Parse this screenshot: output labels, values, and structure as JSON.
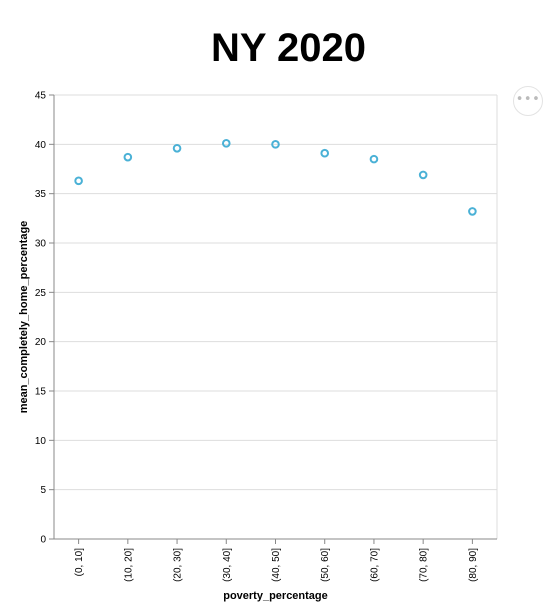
{
  "chart_data": {
    "type": "scatter",
    "title": "NY 2020",
    "xlabel": "poverty_percentage",
    "ylabel": "mean_completely_home_percentage",
    "categories": [
      "(0, 10]",
      "(10, 20]",
      "(20, 30]",
      "(30, 40]",
      "(40, 50]",
      "(50, 60]",
      "(60, 70]",
      "(70, 80]",
      "(80, 90]"
    ],
    "values": [
      36.3,
      38.7,
      39.6,
      40.1,
      40.0,
      39.1,
      38.5,
      36.9,
      33.2
    ],
    "ylim": [
      0,
      45
    ],
    "yticks": [
      0,
      5,
      10,
      15,
      20,
      25,
      30,
      35,
      40,
      45
    ],
    "grid": true,
    "marker": "open-circle",
    "color": "#4ab1d6"
  },
  "actions": {
    "label": "•••",
    "icon": "ellipsis-icon"
  }
}
